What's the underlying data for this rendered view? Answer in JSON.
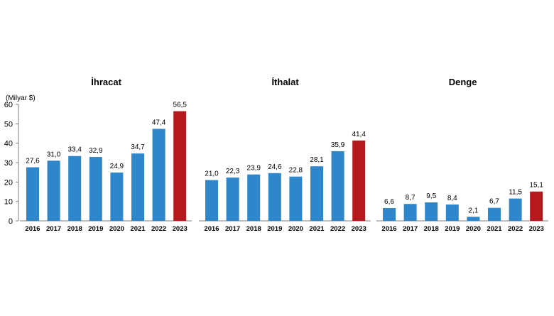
{
  "chart_data": {
    "type": "bar",
    "y_unit_label": "(Milyar $)",
    "ylim": [
      0,
      60
    ],
    "yticks": [
      "0",
      "10",
      "20",
      "30",
      "40",
      "50",
      "60"
    ],
    "grid": false,
    "categories": [
      "2016",
      "2017",
      "2018",
      "2019",
      "2020",
      "2021",
      "2022",
      "2023"
    ],
    "colors": {
      "base": "#2e86cb",
      "highlight": "#b5191e"
    },
    "highlight_category": "2023",
    "panels": [
      {
        "title": "İhracat",
        "values": [
          27.6,
          31.0,
          33.4,
          32.9,
          24.9,
          34.7,
          47.4,
          56.5
        ],
        "labels": [
          "27,6",
          "31,0",
          "33,4",
          "32,9",
          "24,9",
          "34,7",
          "47,4",
          "56,5"
        ]
      },
      {
        "title": "İthalat",
        "values": [
          21.0,
          22.3,
          23.9,
          24.6,
          22.8,
          28.1,
          35.9,
          41.4
        ],
        "labels": [
          "21,0",
          "22,3",
          "23,9",
          "24,6",
          "22,8",
          "28,1",
          "35,9",
          "41,4"
        ]
      },
      {
        "title": "Denge",
        "values": [
          6.6,
          8.7,
          9.5,
          8.4,
          2.1,
          6.7,
          11.5,
          15.1
        ],
        "labels": [
          "6,6",
          "8,7",
          "9,5",
          "8,4",
          "2,1",
          "6,7",
          "11,5",
          "15,1"
        ]
      }
    ]
  }
}
